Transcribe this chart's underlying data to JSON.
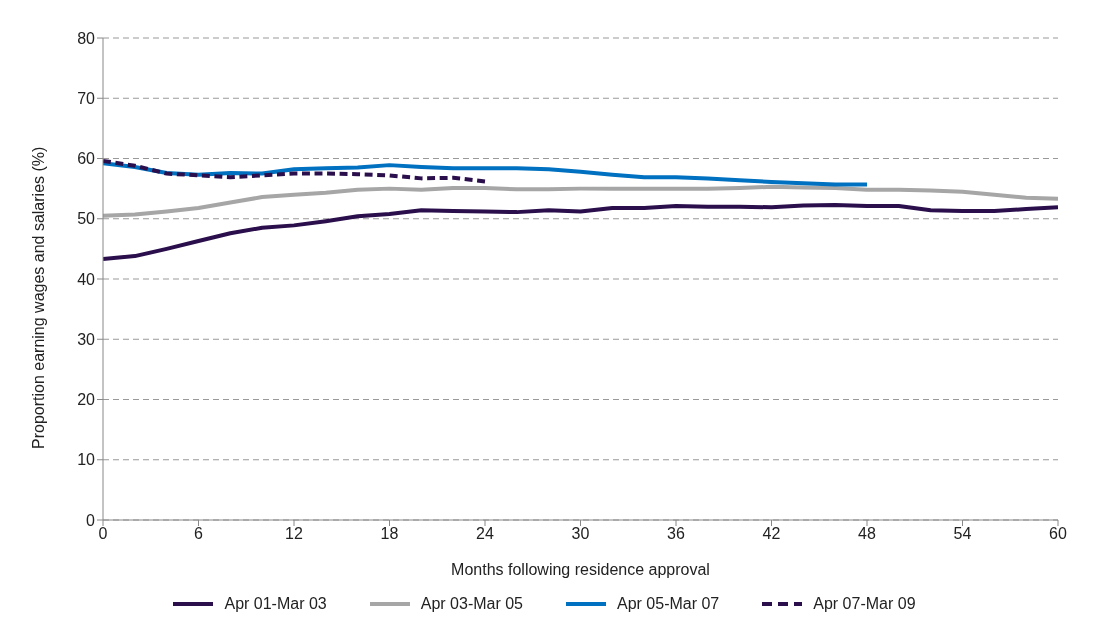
{
  "chart_data": {
    "type": "line",
    "xlabel": "Months following residence approval",
    "ylabel": "Proportion earning wages and salaries (%)",
    "x": [
      0,
      2,
      4,
      6,
      8,
      10,
      12,
      14,
      16,
      18,
      20,
      22,
      24,
      26,
      28,
      30,
      32,
      34,
      36,
      38,
      40,
      42,
      44,
      46,
      48,
      50,
      52,
      54,
      56,
      58,
      60
    ],
    "series": [
      {
        "name": "Apr 01-Mar 03",
        "color": "#2a0f4c",
        "values": [
          43.3,
          43.8,
          45,
          46.3,
          47.6,
          48.5,
          48.9,
          49.6,
          50.4,
          50.8,
          51.4,
          51.3,
          51.2,
          51.1,
          51.4,
          51.2,
          51.8,
          51.8,
          52.1,
          52,
          52,
          51.9,
          52.2,
          52.3,
          52.1,
          52.1,
          51.4,
          51.3,
          51.3,
          51.6,
          51.9
        ]
      },
      {
        "name": "Apr 03-Mar 05",
        "color": "#a6a6a6",
        "values": [
          50.5,
          50.7,
          51.2,
          51.8,
          52.7,
          53.6,
          54,
          54.3,
          54.8,
          55,
          54.8,
          55.1,
          55.1,
          54.9,
          54.9,
          55,
          55,
          55,
          55,
          55,
          55.1,
          55.3,
          55.2,
          55.1,
          54.8,
          54.8,
          54.7,
          54.5,
          54,
          53.5,
          53.3
        ]
      },
      {
        "name": "Apr 05-Mar 07",
        "color": "#0070c0",
        "values": [
          59.2,
          58.6,
          57.6,
          57.3,
          57.6,
          57.5,
          58.2,
          58.4,
          58.5,
          58.9,
          58.6,
          58.4,
          58.4,
          58.4,
          58.2,
          57.8,
          57.3,
          56.9,
          56.9,
          56.7,
          56.4,
          56.1,
          55.9,
          55.7,
          55.7,
          null,
          null,
          null,
          null,
          null,
          null
        ]
      },
      {
        "name": "Apr 07-Mar 09",
        "color": "#2a0f4c",
        "line_style": "dashed",
        "values": [
          59.6,
          58.8,
          57.5,
          57.2,
          56.9,
          57.2,
          57.5,
          57.5,
          57.4,
          57.2,
          56.7,
          56.8,
          56.2,
          null,
          null,
          null,
          null,
          null,
          null,
          null,
          null,
          null,
          null,
          null,
          null,
          null,
          null,
          null,
          null,
          null,
          null
        ]
      }
    ],
    "xlim": [
      0,
      60
    ],
    "xticks": [
      0,
      6,
      12,
      18,
      24,
      30,
      36,
      42,
      48,
      54,
      60
    ],
    "ylim": [
      0,
      80
    ],
    "yticks": [
      0,
      10,
      20,
      30,
      40,
      50,
      60,
      70,
      80
    ],
    "grid": "y",
    "legend": "bottom",
    "marker": "none",
    "line_style": "solid"
  }
}
